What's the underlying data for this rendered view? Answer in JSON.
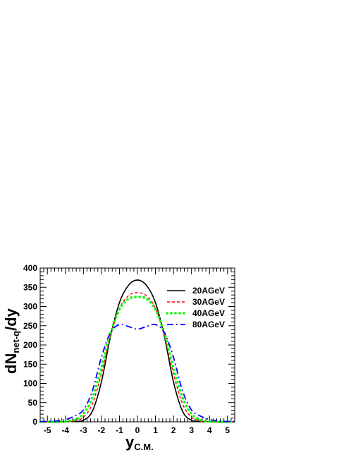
{
  "chart_data": {
    "type": "line",
    "xlabel": {
      "main": "y",
      "sub": "C.M."
    },
    "ylabel": {
      "main": "dN",
      "sub": "net-q",
      "suffix": "/dy"
    },
    "xlim": [
      -5.4,
      5.4
    ],
    "ylim": [
      0,
      400
    ],
    "xticks": [
      -5,
      -4,
      -3,
      -2,
      -1,
      0,
      1,
      2,
      3,
      4,
      5
    ],
    "yticks": [
      0,
      50,
      100,
      150,
      200,
      250,
      300,
      350,
      400
    ],
    "x_minor_step": 0.2,
    "y_minor_step": 10,
    "grid": false,
    "legend_position": "top-right",
    "series": [
      {
        "name": "20AGeV",
        "color": "#000000",
        "dash": "solid",
        "x": [
          -5.4,
          -5.0,
          -4.5,
          -4.0,
          -3.5,
          -3.0,
          -2.5,
          -2.0,
          -1.5,
          -1.0,
          -0.5,
          0,
          0.5,
          1.0,
          1.5,
          2.0,
          2.5,
          3.0,
          3.5,
          4.0,
          4.5,
          5.0,
          5.4
        ],
        "y": [
          0,
          0,
          0,
          0.5,
          1,
          4,
          28,
          104,
          221,
          310,
          355,
          369,
          355,
          310,
          221,
          104,
          28,
          4,
          1,
          0.5,
          0,
          0,
          0
        ]
      },
      {
        "name": "30AGeV",
        "color": "#ff0000",
        "dash": "dashed",
        "x": [
          -5.4,
          -5.0,
          -4.5,
          -4.0,
          -3.5,
          -3.0,
          -2.5,
          -2.0,
          -1.5,
          -1.0,
          -0.5,
          0,
          0.5,
          1.0,
          1.5,
          2.0,
          2.5,
          3.0,
          3.5,
          4.0,
          4.5,
          5.0,
          5.4
        ],
        "y": [
          0,
          0,
          0,
          0.5,
          2,
          12,
          47,
          125,
          222,
          295,
          328,
          336,
          328,
          295,
          222,
          125,
          47,
          12,
          2,
          0.5,
          0,
          0,
          0
        ]
      },
      {
        "name": "40AGeV",
        "color": "#00ff00",
        "dash": "dotted",
        "x": [
          -5.4,
          -5.0,
          -4.5,
          -4.0,
          -3.5,
          -3.0,
          -2.5,
          -2.0,
          -1.5,
          -1.0,
          -0.5,
          0,
          0.5,
          1.0,
          1.5,
          2.0,
          2.5,
          3.0,
          3.5,
          4.0,
          4.5,
          5.0,
          5.4
        ],
        "y": [
          0,
          0,
          0,
          1,
          5,
          21,
          63,
          142,
          230,
          292,
          320,
          325,
          320,
          292,
          230,
          142,
          63,
          21,
          5,
          1,
          0,
          0,
          0
        ]
      },
      {
        "name": "80AGeV",
        "color": "#0000ff",
        "dash": "dashdot",
        "x": [
          -5.4,
          -5.0,
          -4.5,
          -4.0,
          -3.5,
          -3.0,
          -2.5,
          -2.0,
          -1.5,
          -1.0,
          -0.5,
          0,
          0.5,
          1.0,
          1.5,
          2.0,
          2.5,
          3.0,
          3.5,
          4.0,
          4.5,
          5.0,
          5.4
        ],
        "y": [
          1,
          1,
          2,
          6,
          15,
          31,
          81,
          168,
          232,
          253,
          248,
          241,
          248,
          253,
          232,
          168,
          81,
          31,
          15,
          6,
          2,
          1,
          1
        ]
      }
    ]
  }
}
